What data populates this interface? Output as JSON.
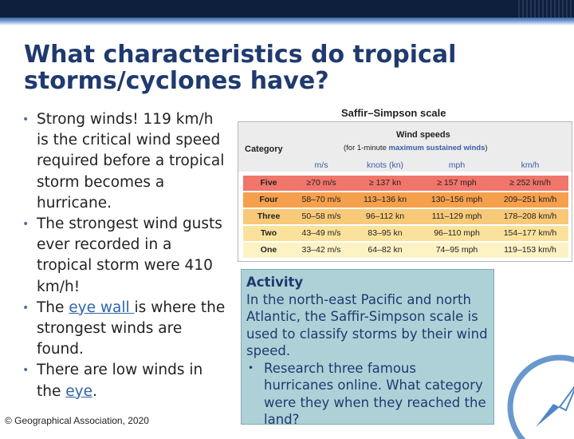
{
  "title": {
    "line1": "What characteristics do tropical",
    "line2": "storms/cyclones have?"
  },
  "bullets": [
    {
      "text": "Strong winds! 119 km/h is the critical wind speed required before a tropical storm becomes a hurricane."
    },
    {
      "text": "The strongest wind gusts ever recorded in a tropical storm were 410 km/h!"
    },
    {
      "pre": "The ",
      "link": "eye wall ",
      "post": "is where the strongest winds are found."
    },
    {
      "pre": "There are low winds in the ",
      "link": "eye",
      "post": "."
    }
  ],
  "copyright": "© Geographical Association, 2020",
  "saffir_simpson": {
    "title": "Saffir–Simpson scale",
    "wind_speeds_label": "Wind speeds",
    "sub_label_pre": "(for 1-minute ",
    "sub_label_bold": "maximum sustained winds",
    "sub_label_post": ")",
    "category_label": "Category",
    "columns": [
      "m/s",
      "knots (kn)",
      "mph",
      "km/h"
    ],
    "rows": [
      {
        "category": "Five",
        "ms": "≥70 m/s",
        "kn": "≥ 137 kn",
        "mph": "≥ 157 mph",
        "kmh": "≥ 252 km/h",
        "color": "#f0756b"
      },
      {
        "category": "Four",
        "ms": "58–70 m/s",
        "kn": "113–136 kn",
        "mph": "130–156 mph",
        "kmh": "209–251 km/h",
        "color": "#f5a04c"
      },
      {
        "category": "Three",
        "ms": "50–58 m/s",
        "kn": "96–112 kn",
        "mph": "111–129 mph",
        "kmh": "178–208 km/h",
        "color": "#f8c978"
      },
      {
        "category": "Two",
        "ms": "43–49 m/s",
        "kn": "83–95 kn",
        "mph": "96–110 mph",
        "kmh": "154–177 km/h",
        "color": "#fbe29c"
      },
      {
        "category": "One",
        "ms": "33–42 m/s",
        "kn": "64–82 kn",
        "mph": "74–95 mph",
        "kmh": "119–153 km/h",
        "color": "#fdf2c4"
      }
    ]
  },
  "activity": {
    "title": "Activity",
    "text": "In the north-east Pacific and north Atlantic, the Saffir-Simpson scale is used to classify storms by their wind speed.",
    "bullet": "Research three famous hurricanes online. What category were they when they reached the land?"
  },
  "colors": {
    "title": "#1f3a6e",
    "activity_bg": "#aed1d8",
    "link": "#2e64a8",
    "top_band": "#0d1f3c"
  }
}
